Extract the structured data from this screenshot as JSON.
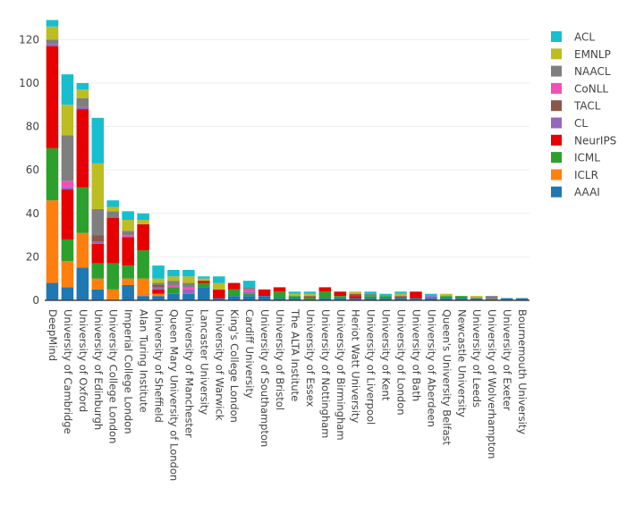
{
  "chart_data": {
    "type": "bar",
    "stacked": true,
    "title": "",
    "xlabel": "",
    "ylabel": "",
    "ylim": [
      0,
      130
    ],
    "yticks": [
      0,
      20,
      40,
      60,
      80,
      100,
      120
    ],
    "grid": true,
    "legend_position": "top-right",
    "categories": [
      "DeepMind",
      "University of Cambridge",
      "University of Oxford",
      "University of Edinburgh",
      "University College London",
      "Imperial College London",
      "Alan Turing Institute",
      "University of Sheffield",
      "Queen Mary University of London",
      "University of Manchester",
      "Lancaster University",
      "University of Warwick",
      "King's College London",
      "Cardiff University",
      "University of Southampton",
      "University of Bristol",
      "The ALTA Institute",
      "University of Essex",
      "University of Nottingham",
      "University of Birmingham",
      "Heriot Watt University",
      "University of Liverpool",
      "University of Kent",
      "University of London",
      "University of Bath",
      "University of Aberdeen",
      "Queen's University Belfast",
      "Newcastle University",
      "University of Leeds",
      "University of Wolverhampton",
      "University of Exeter",
      "Bournemouth University"
    ],
    "series": [
      {
        "name": "AAAI",
        "color": "#1f77b4",
        "values": [
          8,
          6,
          15,
          5,
          0,
          7,
          2,
          2,
          3,
          3,
          6,
          1,
          2,
          2,
          2,
          1,
          1,
          0,
          1,
          1,
          1,
          1,
          1,
          1,
          1,
          1,
          1,
          1,
          1,
          0,
          1,
          1
        ]
      },
      {
        "name": "ICLR",
        "color": "#ff7f0e",
        "values": [
          38,
          12,
          16,
          5,
          5,
          3,
          8,
          1,
          0,
          0,
          0,
          0,
          0,
          0,
          0,
          0,
          0,
          0,
          0,
          0,
          0,
          0,
          0,
          0,
          0,
          0,
          0,
          0,
          0,
          0,
          0,
          0
        ]
      },
      {
        "name": "ICML",
        "color": "#2ca02c",
        "values": [
          24,
          10,
          21,
          7,
          12,
          6,
          13,
          0,
          3,
          0,
          2,
          0,
          3,
          1,
          0,
          3,
          1,
          1,
          3,
          1,
          0,
          1,
          1,
          0,
          0,
          0,
          1,
          1,
          0,
          0,
          0,
          0
        ]
      },
      {
        "name": "NeurIPS",
        "color": "#e60000",
        "values": [
          47,
          23,
          36,
          9,
          21,
          13,
          12,
          2,
          0,
          0,
          1,
          4,
          3,
          0,
          3,
          2,
          0,
          0,
          2,
          2,
          1,
          0,
          0,
          0,
          3,
          0,
          0,
          0,
          0,
          0,
          0,
          0
        ]
      },
      {
        "name": "CL",
        "color": "#9467bd",
        "values": [
          1,
          1,
          1,
          1,
          0,
          0,
          0,
          1,
          0,
          2,
          0,
          0,
          0,
          1,
          0,
          0,
          0,
          0,
          0,
          0,
          0,
          0,
          0,
          0,
          0,
          1,
          0,
          0,
          0,
          0,
          0,
          0
        ]
      },
      {
        "name": "TACL",
        "color": "#8c564b",
        "values": [
          0,
          0,
          0,
          3,
          0,
          0,
          0,
          1,
          0,
          0,
          0,
          0,
          0,
          0,
          0,
          0,
          0,
          1,
          0,
          0,
          1,
          0,
          0,
          1,
          0,
          0,
          0,
          0,
          0,
          0,
          0,
          0
        ]
      },
      {
        "name": "CoNLL",
        "color": "#f050b8",
        "values": [
          0,
          3,
          0,
          0,
          0,
          1,
          0,
          0,
          1,
          1,
          0,
          0,
          0,
          1,
          0,
          0,
          0,
          0,
          0,
          0,
          0,
          0,
          0,
          0,
          0,
          0,
          0,
          0,
          0,
          0,
          0,
          0
        ]
      },
      {
        "name": "NAACL",
        "color": "#7f7f7f",
        "values": [
          2,
          21,
          4,
          12,
          3,
          2,
          0,
          1,
          2,
          2,
          0,
          0,
          0,
          1,
          0,
          0,
          0,
          0,
          0,
          0,
          0,
          1,
          0,
          0,
          0,
          0,
          0,
          0,
          0,
          2,
          0,
          0
        ]
      },
      {
        "name": "EMNLP",
        "color": "#bcbd22",
        "values": [
          6,
          14,
          4,
          21,
          2,
          5,
          2,
          2,
          2,
          3,
          1,
          3,
          0,
          0,
          0,
          0,
          1,
          1,
          0,
          0,
          1,
          0,
          0,
          1,
          0,
          0,
          1,
          0,
          1,
          0,
          0,
          0
        ]
      },
      {
        "name": "ACL",
        "color": "#17becf",
        "values": [
          3,
          14,
          3,
          21,
          3,
          4,
          3,
          6,
          3,
          3,
          1,
          3,
          0,
          3,
          0,
          0,
          1,
          1,
          0,
          0,
          0,
          1,
          1,
          1,
          0,
          1,
          0,
          0,
          0,
          0,
          0,
          0
        ]
      }
    ],
    "legend": [
      "ACL",
      "EMNLP",
      "NAACL",
      "CoNLL",
      "TACL",
      "CL",
      "NeurIPS",
      "ICML",
      "ICLR",
      "AAAI"
    ]
  }
}
